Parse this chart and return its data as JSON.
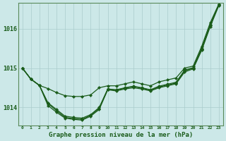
{
  "title": "Graphe pression niveau de la mer (hPa)",
  "background_color": "#cce8e8",
  "grid_color": "#aacccc",
  "line_color": "#1a5c1a",
  "ylim": [
    1013.55,
    1016.65
  ],
  "yticks": [
    1014,
    1015,
    1016
  ],
  "x_labels": [
    "0",
    "1",
    "2",
    "3",
    "4",
    "5",
    "6",
    "7",
    "8",
    "9",
    "10",
    "11",
    "12",
    "13",
    "14",
    "15",
    "16",
    "17",
    "18",
    "19",
    "20",
    "21",
    "22",
    "23"
  ],
  "series": {
    "line_high": [
      1015.0,
      1014.72,
      1014.56,
      1014.48,
      1014.38,
      1014.3,
      1014.28,
      1014.28,
      1014.32,
      1014.5,
      1014.55,
      1014.55,
      1014.6,
      1014.65,
      1014.6,
      1014.55,
      1014.65,
      1014.7,
      1014.75,
      1015.0,
      1015.05,
      1015.55,
      1016.15,
      1016.62
    ],
    "line_low": [
      1015.0,
      1014.72,
      1014.56,
      1014.05,
      1013.88,
      1013.73,
      1013.7,
      1013.68,
      1013.78,
      1013.95,
      1014.45,
      1014.42,
      1014.47,
      1014.5,
      1014.47,
      1014.42,
      1014.5,
      1014.55,
      1014.6,
      1014.9,
      1014.98,
      1015.45,
      1016.05,
      1016.58
    ],
    "line_mid1": [
      1015.0,
      1014.72,
      1014.56,
      1014.1,
      1013.92,
      1013.75,
      1013.72,
      1013.7,
      1013.8,
      1013.98,
      1014.46,
      1014.44,
      1014.49,
      1014.53,
      1014.49,
      1014.44,
      1014.52,
      1014.57,
      1014.62,
      1014.93,
      1015.0,
      1015.48,
      1016.08,
      1016.6
    ],
    "line_mid2": [
      1015.0,
      1014.72,
      1014.56,
      1014.12,
      1013.95,
      1013.78,
      1013.75,
      1013.73,
      1013.82,
      1014.0,
      1014.47,
      1014.45,
      1014.5,
      1014.54,
      1014.5,
      1014.45,
      1014.54,
      1014.59,
      1014.64,
      1014.95,
      1015.01,
      1015.5,
      1016.1,
      1016.61
    ]
  }
}
